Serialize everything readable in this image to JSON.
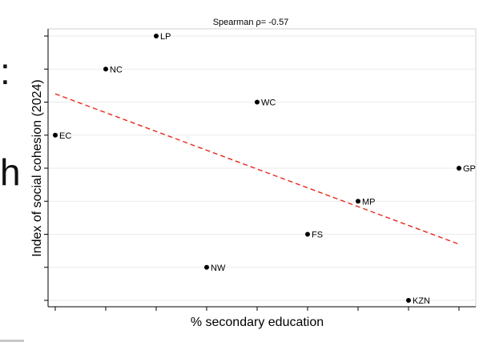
{
  "background_fragments": [
    {
      "text": ":"
    },
    {
      "text": "h"
    }
  ],
  "chart_data": {
    "type": "scatter",
    "title": "Spearman ρ= -0.57",
    "xlabel": "% secondary education",
    "ylabel": "Index of social cohesion (2024)",
    "xlim": [
      0,
      8
    ],
    "ylim": [
      0,
      8
    ],
    "x_ticks": [
      0,
      1,
      2,
      3,
      4,
      5,
      6,
      7,
      8
    ],
    "y_ticks": [
      0,
      1,
      2,
      3,
      4,
      5,
      6,
      7,
      8
    ],
    "tick_labels_shown": false,
    "grid": "horizontal",
    "points": [
      {
        "label": "LP",
        "x": 2,
        "y": 8
      },
      {
        "label": "NC",
        "x": 1,
        "y": 7
      },
      {
        "label": "WC",
        "x": 4,
        "y": 6
      },
      {
        "label": "EC",
        "x": 0,
        "y": 5
      },
      {
        "label": "GP",
        "x": 8,
        "y": 4
      },
      {
        "label": "MP",
        "x": 6,
        "y": 3
      },
      {
        "label": "FS",
        "x": 5,
        "y": 2
      },
      {
        "label": "NW",
        "x": 3,
        "y": 1
      },
      {
        "label": "KZN",
        "x": 7,
        "y": 0
      }
    ],
    "fit_line": {
      "style": "dashed",
      "color": "#e8271d",
      "x": [
        0,
        8
      ],
      "y": [
        6.25,
        1.7
      ]
    }
  }
}
